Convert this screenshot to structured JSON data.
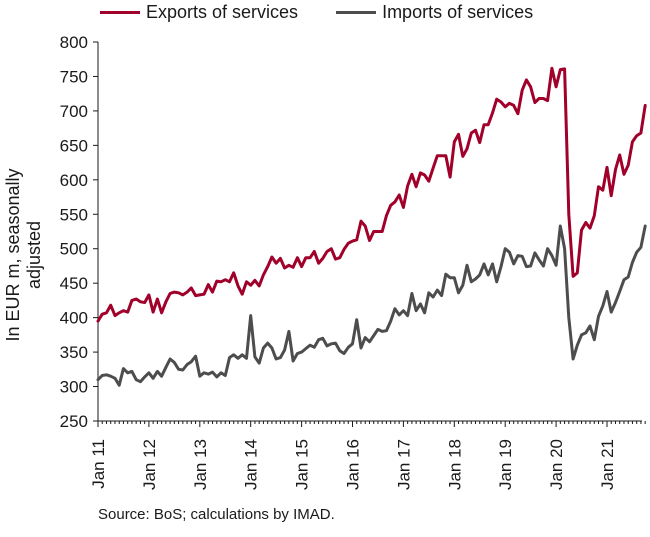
{
  "chart_data": {
    "type": "line",
    "ylabel": "In EUR m, seasonally adjusted",
    "xlabel": "",
    "ylim": [
      250,
      800
    ],
    "yticks": [
      250,
      300,
      350,
      400,
      450,
      500,
      550,
      600,
      650,
      700,
      750,
      800
    ],
    "xticks": [
      "Jan 11",
      "Jan 12",
      "Jan 13",
      "Jan 14",
      "Jan 15",
      "Jan 16",
      "Jan 17",
      "Jan 18",
      "Jan 19",
      "Jan 20",
      "Jan 21"
    ],
    "x_start": "2011-01",
    "grid": false,
    "legend": "top",
    "source": "Source: BoS; calculations by IMAD.",
    "series": [
      {
        "name": "Exports of services",
        "color": "#a0002a",
        "values": [
          395,
          405,
          407,
          418,
          403,
          407,
          410,
          408,
          425,
          427,
          423,
          422,
          433,
          408,
          427,
          407,
          423,
          435,
          437,
          436,
          433,
          437,
          443,
          432,
          433,
          434,
          448,
          437,
          453,
          452,
          455,
          452,
          465,
          446,
          434,
          452,
          447,
          454,
          446,
          462,
          474,
          488,
          479,
          486,
          472,
          476,
          473,
          487,
          474,
          487,
          487,
          496,
          479,
          486,
          496,
          500,
          485,
          487,
          499,
          508,
          511,
          513,
          540,
          533,
          512,
          525,
          525,
          525,
          548,
          563,
          568,
          578,
          560,
          591,
          608,
          590,
          610,
          607,
          598,
          617,
          635,
          635,
          635,
          604,
          655,
          666,
          634,
          645,
          668,
          672,
          654,
          680,
          680,
          697,
          717,
          713,
          706,
          711,
          708,
          696,
          730,
          745,
          735,
          712,
          718,
          718,
          715,
          762,
          735,
          760,
          761,
          550,
          460,
          465,
          527,
          538,
          530,
          548,
          590,
          585,
          618,
          577,
          615,
          636,
          608,
          621,
          655,
          664,
          668,
          708
        ]
      },
      {
        "name": "Imports of services",
        "color": "#4d4d4d",
        "values": [
          310,
          316,
          317,
          315,
          312,
          302,
          326,
          320,
          322,
          310,
          307,
          314,
          320,
          312,
          322,
          315,
          328,
          340,
          335,
          325,
          324,
          332,
          336,
          344,
          315,
          320,
          318,
          321,
          314,
          320,
          316,
          342,
          346,
          341,
          346,
          341,
          403,
          343,
          334,
          356,
          363,
          356,
          340,
          342,
          353,
          380,
          337,
          348,
          350,
          355,
          360,
          357,
          368,
          370,
          359,
          362,
          363,
          352,
          348,
          357,
          362,
          397,
          356,
          371,
          365,
          374,
          383,
          380,
          381,
          395,
          413,
          404,
          410,
          403,
          435,
          410,
          420,
          407,
          436,
          430,
          440,
          432,
          463,
          458,
          458,
          436,
          447,
          476,
          452,
          456,
          462,
          478,
          462,
          478,
          452,
          474,
          500,
          495,
          478,
          490,
          489,
          474,
          475,
          494,
          484,
          475,
          500,
          490,
          476,
          533,
          500,
          400,
          340,
          360,
          375,
          378,
          388,
          368,
          402,
          417,
          438,
          408,
          422,
          438,
          455,
          459,
          480,
          495,
          502,
          533
        ]
      }
    ]
  }
}
